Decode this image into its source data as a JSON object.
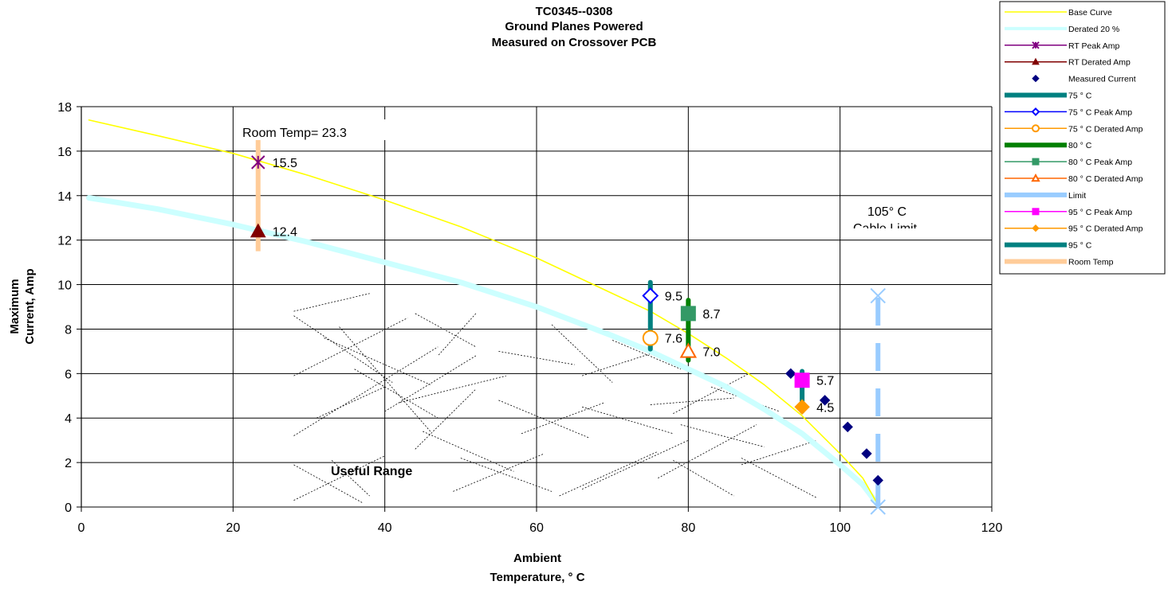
{
  "chart_data": {
    "type": "line",
    "title_lines": [
      "TC0345--0308",
      "Ground Planes Powered",
      "Measured on Crossover PCB"
    ],
    "xlabel_lines": [
      "Ambient",
      "Temperature,  ° C"
    ],
    "ylabel_lines": [
      "Maximum",
      "Current, Amp"
    ],
    "xlim": [
      0,
      120
    ],
    "ylim": [
      0,
      18
    ],
    "xticks": [
      0,
      20,
      40,
      60,
      80,
      100,
      120
    ],
    "yticks": [
      0,
      2,
      4,
      6,
      8,
      10,
      12,
      14,
      16,
      18
    ],
    "grid": true,
    "legend_position": "top-right",
    "series": [
      {
        "name": "Base Curve",
        "color": "#ffff00",
        "style": "line",
        "x": [
          1,
          10,
          20,
          30,
          40,
          50,
          60,
          70,
          75,
          80,
          85,
          90,
          95,
          100,
          103,
          105
        ],
        "y": [
          17.4,
          16.7,
          15.9,
          14.9,
          13.8,
          12.6,
          11.2,
          9.6,
          8.8,
          7.8,
          6.7,
          5.5,
          4.1,
          2.4,
          1.3,
          0.1
        ]
      },
      {
        "name": "Derated 20 %",
        "color": "#ccffff",
        "style": "thickline",
        "x": [
          1,
          10,
          20,
          30,
          40,
          50,
          60,
          70,
          75,
          80,
          85,
          90,
          95,
          100,
          103,
          105
        ],
        "y": [
          13.9,
          13.4,
          12.7,
          11.9,
          11.0,
          10.1,
          9.0,
          7.7,
          7.0,
          6.2,
          5.4,
          4.4,
          3.3,
          1.9,
          1.0,
          0.1
        ]
      },
      {
        "name": "RT Peak Amp",
        "color": "#800080",
        "marker": "asterisk",
        "x": [
          23.3
        ],
        "y": [
          15.5
        ],
        "labels": [
          "15.5"
        ]
      },
      {
        "name": "RT Derated Amp",
        "color": "#800000",
        "marker": "triangle",
        "x": [
          23.3
        ],
        "y": [
          12.4
        ],
        "labels": [
          "12.4"
        ]
      },
      {
        "name": "Measured Current",
        "color": "#000080",
        "marker": "diamond",
        "x": [
          93.5,
          98,
          101,
          103.5,
          105
        ],
        "y": [
          6.0,
          4.8,
          3.6,
          2.4,
          1.2
        ]
      },
      {
        "name": "75 ° C",
        "color": "#008080",
        "style": "vbar",
        "x": [
          75,
          75
        ],
        "y": [
          7.1,
          10.1
        ]
      },
      {
        "name": "75  ° C Peak Amp",
        "color": "#0000ff",
        "marker": "diamond-open",
        "x": [
          75
        ],
        "y": [
          9.5
        ],
        "labels": [
          "9.5"
        ]
      },
      {
        "name": "75  ° C Derated Amp",
        "color": "#ff9900",
        "marker": "circle-open",
        "x": [
          75
        ],
        "y": [
          7.6
        ],
        "labels": [
          "7.6"
        ]
      },
      {
        "name": "80  ° C",
        "color": "#008000",
        "style": "vbar",
        "x": [
          80,
          80
        ],
        "y": [
          6.6,
          9.3
        ]
      },
      {
        "name": "80  ° C Peak Amp",
        "color": "#339966",
        "marker": "square",
        "x": [
          80
        ],
        "y": [
          8.7
        ],
        "labels": [
          "8.7"
        ]
      },
      {
        "name": "80  ° C Derated Amp",
        "color": "#ff6600",
        "marker": "triangle-open",
        "x": [
          80
        ],
        "y": [
          7.0
        ],
        "labels": [
          "7.0"
        ]
      },
      {
        "name": "Limit",
        "color": "#99ccff",
        "style": "dashed",
        "x": [
          105,
          105
        ],
        "y": [
          0,
          9.5
        ]
      },
      {
        "name": "95  ° C Peak Amp",
        "color": "#ff00ff",
        "marker": "square",
        "x": [
          95
        ],
        "y": [
          5.7
        ],
        "labels": [
          "5.7"
        ]
      },
      {
        "name": "95  ° C Derated Amp",
        "color": "#ff9900",
        "marker": "diamond",
        "x": [
          95
        ],
        "y": [
          4.5
        ],
        "labels": [
          "4.5"
        ]
      },
      {
        "name": "95  ° C",
        "color": "#008080",
        "style": "vbar",
        "x": [
          95,
          95
        ],
        "y": [
          4.3,
          6.1
        ]
      },
      {
        "name": "Room Temp",
        "color": "#ffcc99",
        "style": "vbar",
        "x": [
          23.3,
          23.3
        ],
        "y": [
          11.5,
          16.7
        ]
      }
    ],
    "annotations": {
      "room_temp": "Room Temp= 23.3",
      "limit_line1": "105° C",
      "limit_line2": "Cable Limit",
      "useful_range": "Useful Range"
    }
  }
}
